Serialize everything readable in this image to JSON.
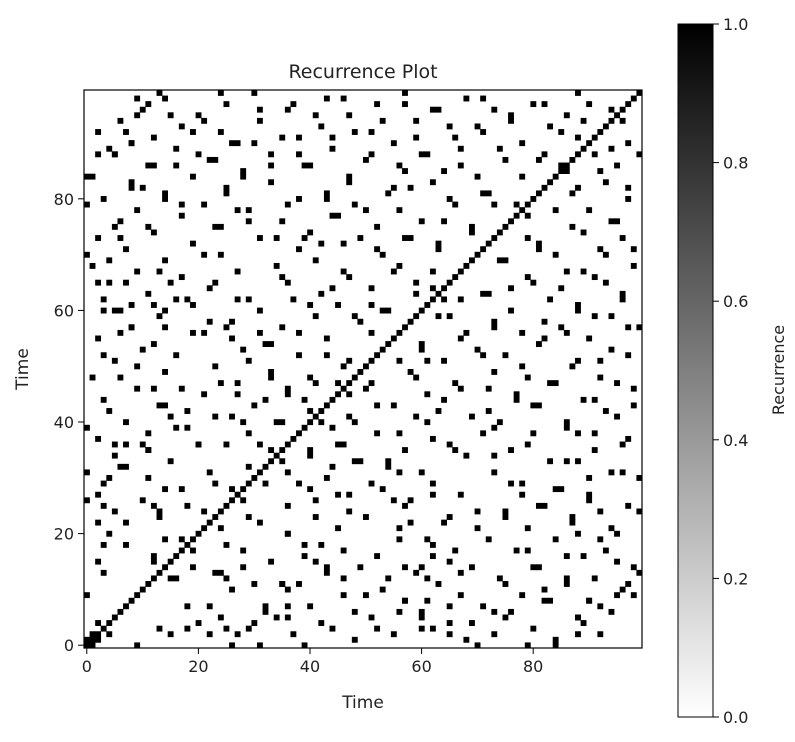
{
  "chart_data": {
    "type": "heatmap",
    "title": "Recurrence Plot",
    "xlabel": "Time",
    "ylabel": "Time",
    "n": 100,
    "xlim": [
      0,
      100
    ],
    "ylim": [
      0,
      100
    ],
    "x_ticks": [
      0,
      20,
      40,
      60,
      80
    ],
    "y_ticks": [
      0,
      20,
      40,
      60,
      80
    ],
    "colormap": "binary",
    "colorbar": {
      "label": "Recurrence",
      "range": [
        0.0,
        1.0
      ],
      "ticks": [
        "0.0",
        "0.2",
        "0.4",
        "0.6",
        "0.8",
        "1.0"
      ]
    },
    "description_values": "Binary recurrence matrix: diagonal cells (i = j) are 1; off-diagonal cells mostly 0 with scattered 1 entries, symmetric about the diagonal.",
    "values_pairs": [
      [
        0,
        1
      ],
      [
        1,
        2
      ],
      [
        0,
        9
      ],
      [
        0,
        26
      ],
      [
        0,
        31
      ],
      [
        0,
        39
      ],
      [
        0,
        70
      ],
      [
        0,
        79
      ],
      [
        0,
        84
      ],
      [
        2,
        4
      ],
      [
        2,
        15
      ],
      [
        2,
        22
      ],
      [
        2,
        27
      ],
      [
        2,
        65
      ],
      [
        2,
        88
      ],
      [
        3,
        13
      ],
      [
        3,
        18
      ],
      [
        3,
        52
      ],
      [
        3,
        60
      ],
      [
        4,
        30
      ],
      [
        4,
        69
      ],
      [
        4,
        89
      ],
      [
        5,
        24
      ],
      [
        5,
        36
      ],
      [
        5,
        60
      ],
      [
        5,
        75
      ],
      [
        5,
        88
      ],
      [
        6,
        48
      ],
      [
        6,
        56
      ],
      [
        6,
        73
      ],
      [
        7,
        18
      ],
      [
        7,
        32
      ],
      [
        7,
        36
      ],
      [
        7,
        65
      ],
      [
        7,
        92
      ],
      [
        8,
        57
      ],
      [
        8,
        61
      ],
      [
        8,
        82
      ],
      [
        8,
        90
      ],
      [
        9,
        50
      ],
      [
        9,
        95
      ],
      [
        9,
        98
      ],
      [
        10,
        36
      ],
      [
        10,
        53
      ],
      [
        10,
        82
      ],
      [
        11,
        35
      ],
      [
        11,
        75
      ],
      [
        11,
        97
      ],
      [
        12,
        15
      ],
      [
        12,
        25
      ],
      [
        12,
        46
      ],
      [
        12,
        61
      ],
      [
        12,
        86
      ],
      [
        13,
        23
      ],
      [
        13,
        43
      ],
      [
        13,
        67
      ],
      [
        13,
        99
      ],
      [
        14,
        28
      ],
      [
        14,
        57
      ],
      [
        14,
        60
      ],
      [
        14,
        80
      ],
      [
        15,
        41
      ],
      [
        15,
        65
      ],
      [
        15,
        95
      ],
      [
        16,
        12
      ],
      [
        16,
        39
      ],
      [
        16,
        62
      ],
      [
        16,
        86
      ],
      [
        17,
        19
      ],
      [
        17,
        46
      ],
      [
        17,
        79
      ],
      [
        18,
        25
      ],
      [
        18,
        42
      ],
      [
        18,
        62
      ],
      [
        19,
        14
      ],
      [
        19,
        56
      ],
      [
        19,
        92
      ],
      [
        20,
        4
      ],
      [
        20,
        36
      ],
      [
        20,
        88
      ],
      [
        21,
        24
      ],
      [
        21,
        70
      ],
      [
        21,
        94
      ],
      [
        22,
        7
      ],
      [
        22,
        31
      ],
      [
        22,
        58
      ],
      [
        23,
        41
      ],
      [
        23,
        65
      ],
      [
        23,
        87
      ],
      [
        24,
        13
      ],
      [
        24,
        47
      ],
      [
        24,
        75
      ],
      [
        24,
        99
      ],
      [
        25,
        3
      ],
      [
        25,
        36
      ],
      [
        25,
        57
      ],
      [
        25,
        81
      ],
      [
        26,
        10
      ],
      [
        26,
        28
      ],
      [
        26,
        55
      ],
      [
        26,
        90
      ],
      [
        27,
        45
      ],
      [
        27,
        62
      ],
      [
        27,
        78
      ],
      [
        28,
        17
      ],
      [
        28,
        40
      ],
      [
        28,
        84
      ],
      [
        29,
        3
      ],
      [
        29,
        23
      ],
      [
        29,
        51
      ],
      [
        29,
        76
      ],
      [
        30,
        11
      ],
      [
        30,
        43
      ],
      [
        30,
        90
      ],
      [
        31,
        36
      ],
      [
        31,
        56
      ],
      [
        31,
        96
      ],
      [
        32,
        6
      ],
      [
        32,
        29
      ],
      [
        32,
        54
      ],
      [
        33,
        15
      ],
      [
        33,
        48
      ],
      [
        33,
        86
      ],
      [
        34,
        5
      ],
      [
        34,
        40
      ],
      [
        34,
        73
      ],
      [
        35,
        11
      ],
      [
        35,
        33
      ],
      [
        35,
        66
      ],
      [
        35,
        91
      ],
      [
        36,
        20
      ],
      [
        36,
        45
      ],
      [
        36,
        79
      ],
      [
        37,
        2
      ],
      [
        37,
        62
      ],
      [
        37,
        97
      ],
      [
        38,
        11
      ],
      [
        38,
        29
      ],
      [
        38,
        56
      ],
      [
        38,
        88
      ],
      [
        39,
        18
      ],
      [
        39,
        44
      ],
      [
        39,
        73
      ],
      [
        40,
        7
      ],
      [
        40,
        35
      ],
      [
        40,
        61
      ],
      [
        40,
        86
      ],
      [
        41,
        26
      ],
      [
        41,
        47
      ],
      [
        41,
        95
      ],
      [
        42,
        4
      ],
      [
        42,
        40
      ],
      [
        42,
        72
      ],
      [
        43,
        14
      ],
      [
        43,
        52
      ],
      [
        43,
        80
      ],
      [
        44,
        3
      ],
      [
        44,
        32
      ],
      [
        44,
        64
      ],
      [
        44,
        91
      ],
      [
        45,
        21
      ],
      [
        45,
        47
      ],
      [
        45,
        77
      ],
      [
        46,
        9
      ],
      [
        46,
        36
      ],
      [
        46,
        67
      ],
      [
        46,
        98
      ],
      [
        47,
        27
      ],
      [
        47,
        51
      ],
      [
        47,
        83
      ],
      [
        48,
        1
      ],
      [
        48,
        40
      ],
      [
        48,
        59
      ],
      [
        48,
        92
      ],
      [
        49,
        14
      ],
      [
        49,
        33
      ],
      [
        49,
        73
      ],
      [
        50,
        23
      ],
      [
        50,
        46
      ],
      [
        50,
        78
      ],
      [
        51,
        5
      ],
      [
        51,
        61
      ],
      [
        51,
        88
      ],
      [
        52,
        16
      ],
      [
        52,
        38
      ],
      [
        52,
        71
      ],
      [
        53,
        28
      ],
      [
        53,
        60
      ],
      [
        53,
        94
      ],
      [
        54,
        12
      ],
      [
        54,
        33
      ],
      [
        54,
        81
      ],
      [
        55,
        2
      ],
      [
        55,
        43
      ],
      [
        55,
        67
      ],
      [
        56,
        21
      ],
      [
        56,
        51
      ],
      [
        56,
        86
      ],
      [
        57,
        8
      ],
      [
        57,
        35
      ],
      [
        57,
        73
      ],
      [
        57,
        97
      ],
      [
        58,
        26
      ],
      [
        58,
        49
      ],
      [
        58,
        82
      ],
      [
        59,
        13
      ],
      [
        59,
        41
      ],
      [
        59,
        63
      ],
      [
        59,
        91
      ],
      [
        60,
        6
      ],
      [
        60,
        31
      ],
      [
        60,
        54
      ],
      [
        60,
        76
      ],
      [
        61,
        19
      ],
      [
        61,
        45
      ],
      [
        61,
        88
      ],
      [
        62,
        3
      ],
      [
        62,
        29
      ],
      [
        62,
        64
      ],
      [
        62,
        96
      ],
      [
        63,
        11
      ],
      [
        63,
        42
      ],
      [
        63,
        72
      ],
      [
        64,
        22
      ],
      [
        64,
        51
      ],
      [
        64,
        85
      ],
      [
        65,
        4
      ],
      [
        65,
        36
      ],
      [
        65,
        59
      ],
      [
        65,
        93
      ],
      [
        66,
        17
      ],
      [
        66,
        47
      ],
      [
        66,
        79
      ],
      [
        67,
        9
      ],
      [
        67,
        27
      ],
      [
        67,
        62
      ],
      [
        67,
        89
      ],
      [
        68,
        1
      ],
      [
        68,
        34
      ],
      [
        68,
        56
      ],
      [
        68,
        98
      ],
      [
        69,
        14
      ],
      [
        69,
        41
      ],
      [
        69,
        75
      ],
      [
        70,
        24
      ],
      [
        70,
        53
      ],
      [
        70,
        84
      ],
      [
        71,
        7
      ],
      [
        71,
        38
      ],
      [
        71,
        63
      ],
      [
        71,
        92
      ],
      [
        72,
        19
      ],
      [
        72,
        46
      ],
      [
        72,
        81
      ],
      [
        73,
        2
      ],
      [
        73,
        31
      ],
      [
        73,
        58
      ],
      [
        73,
        96
      ],
      [
        74,
        12
      ],
      [
        74,
        40
      ],
      [
        74,
        69
      ],
      [
        75,
        23
      ],
      [
        75,
        52
      ],
      [
        75,
        87
      ],
      [
        76,
        6
      ],
      [
        76,
        35
      ],
      [
        76,
        64
      ],
      [
        76,
        94
      ],
      [
        77,
        17
      ],
      [
        77,
        44
      ],
      [
        77,
        79
      ],
      [
        78,
        9
      ],
      [
        78,
        29
      ],
      [
        78,
        56
      ],
      [
        78,
        90
      ],
      [
        79,
        21
      ],
      [
        79,
        48
      ],
      [
        79,
        73
      ],
      [
        80,
        3
      ],
      [
        80,
        38
      ],
      [
        80,
        65
      ],
      [
        80,
        97
      ],
      [
        81,
        14
      ],
      [
        81,
        43
      ],
      [
        81,
        71
      ],
      [
        82,
        25
      ],
      [
        82,
        55
      ],
      [
        82,
        88
      ],
      [
        83,
        8
      ],
      [
        83,
        33
      ],
      [
        83,
        62
      ],
      [
        83,
        93
      ],
      [
        84,
        1
      ],
      [
        84,
        19
      ],
      [
        84,
        47
      ],
      [
        84,
        78
      ],
      [
        85,
        28
      ],
      [
        85,
        57
      ],
      [
        85,
        86
      ],
      [
        86,
        11
      ],
      [
        86,
        39
      ],
      [
        86,
        67
      ],
      [
        86,
        95
      ],
      [
        87,
        22
      ],
      [
        87,
        50
      ],
      [
        87,
        81
      ],
      [
        88,
        5
      ],
      [
        88,
        33
      ],
      [
        88,
        60
      ],
      [
        88,
        91
      ],
      [
        89,
        16
      ],
      [
        89,
        44
      ],
      [
        89,
        74
      ],
      [
        90,
        8
      ],
      [
        90,
        27
      ],
      [
        90,
        55
      ],
      [
        90,
        97
      ],
      [
        91,
        12
      ],
      [
        91,
        38
      ],
      [
        91,
        66
      ],
      [
        92,
        2
      ],
      [
        92,
        24
      ],
      [
        92,
        51
      ],
      [
        92,
        85
      ],
      [
        93,
        17
      ],
      [
        93,
        42
      ],
      [
        93,
        70
      ],
      [
        94,
        6
      ],
      [
        94,
        31
      ],
      [
        94,
        59
      ],
      [
        94,
        89
      ],
      [
        95,
        20
      ],
      [
        95,
        47
      ],
      [
        95,
        76
      ],
      [
        96,
        10
      ],
      [
        96,
        36
      ],
      [
        96,
        63
      ],
      [
        96,
        94
      ],
      [
        97,
        25
      ],
      [
        97,
        52
      ],
      [
        97,
        82
      ],
      [
        98,
        14
      ],
      [
        98,
        43
      ],
      [
        98,
        71
      ],
      [
        99,
        30
      ],
      [
        99,
        57
      ],
      [
        99,
        88
      ]
    ]
  }
}
